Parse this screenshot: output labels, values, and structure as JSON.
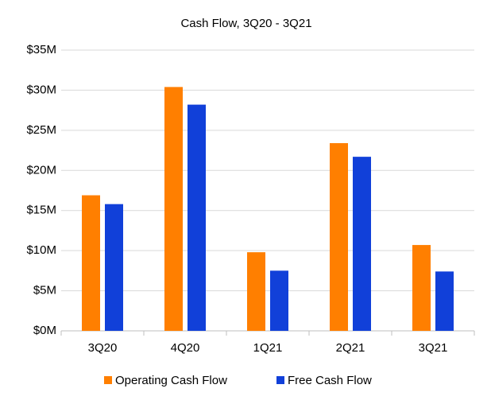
{
  "chart_data": {
    "type": "bar",
    "title": "Cash Flow, 3Q20 - 3Q21",
    "categories": [
      "3Q20",
      "4Q20",
      "1Q21",
      "2Q21",
      "3Q21"
    ],
    "series": [
      {
        "name": "Operating Cash Flow",
        "color": "#ff7f00",
        "values": [
          16.9,
          30.4,
          9.8,
          23.4,
          10.7
        ]
      },
      {
        "name": "Free Cash Flow",
        "color": "#1140d9",
        "values": [
          15.8,
          28.2,
          7.5,
          21.7,
          7.4
        ]
      }
    ],
    "ylim": [
      0,
      35
    ],
    "yticks": [
      {
        "value": 0,
        "label": "$0M"
      },
      {
        "value": 5,
        "label": "$5M"
      },
      {
        "value": 10,
        "label": "$10M"
      },
      {
        "value": 15,
        "label": "$15M"
      },
      {
        "value": 20,
        "label": "$20M"
      },
      {
        "value": 25,
        "label": "$25M"
      },
      {
        "value": 30,
        "label": "$30M"
      },
      {
        "value": 35,
        "label": "$35M"
      }
    ],
    "grid": true,
    "legend": "bottom"
  }
}
